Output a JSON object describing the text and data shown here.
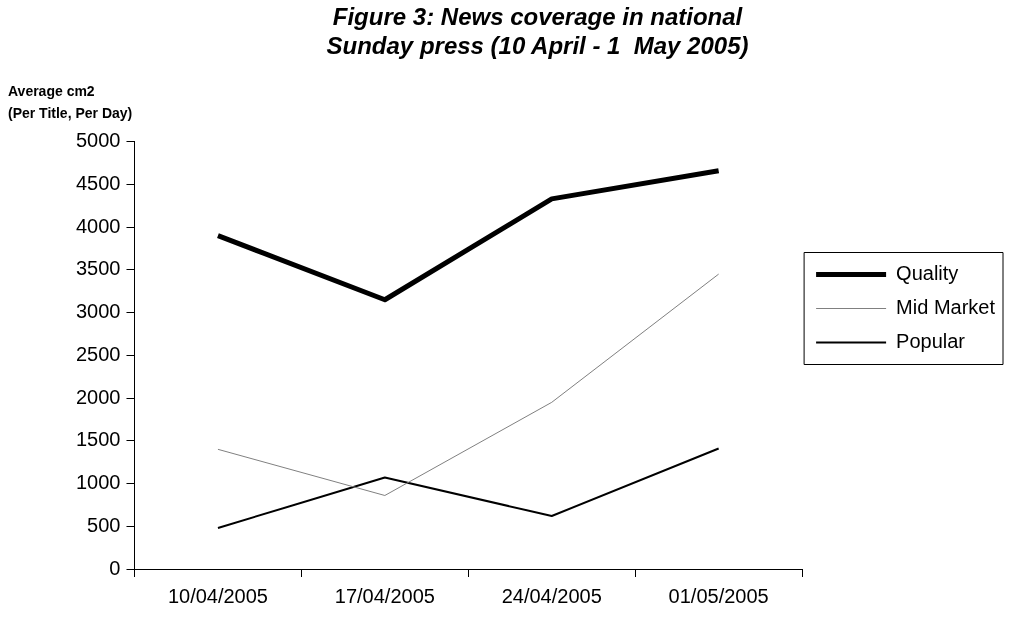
{
  "chart_data": {
    "type": "line",
    "title": "Figure 3: News coverage in national\nSunday press (10 April - 1  May 2005)",
    "ylabel": "Average cm2\n(Per Title, Per Day)",
    "categories": [
      "10/04/2005",
      "17/04/2005",
      "24/04/2005",
      "01/05/2005"
    ],
    "series": [
      {
        "name": "Quality",
        "color": "#000000",
        "values": [
          3900,
          3150,
          4330,
          4660
        ]
      },
      {
        "name": "Mid Market",
        "color": "#808080",
        "values": [
          1400,
          860,
          1950,
          3450
        ]
      },
      {
        "name": "Popular",
        "color": "#000000",
        "values": [
          480,
          1070,
          620,
          1410
        ]
      }
    ],
    "ylim": [
      0,
      5000
    ],
    "yticks": [
      0,
      500,
      1000,
      1500,
      2000,
      2500,
      3000,
      3500,
      4000,
      4500,
      5000
    ],
    "grid": false,
    "legend": "right",
    "marker": "none",
    "line_style": "solid"
  }
}
